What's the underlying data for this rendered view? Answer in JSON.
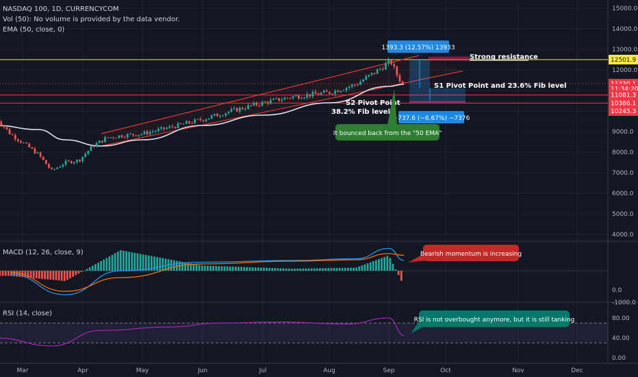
{
  "header": {
    "symbol_line": "NASDAQ 100, 1D, CURRENCYCOM",
    "vol_line": "Vol (50): No volume is provided by the data vendor.",
    "ema_line": "EMA (50, close, 0)"
  },
  "price_axis": {
    "ticks": [
      "15000.0",
      "14000.0",
      "13000.0",
      "12000.0",
      "11000.0",
      "10000.0",
      "9000.0",
      "8000.0",
      "7000.0",
      "6000.0",
      "5000.0",
      "4000.0"
    ],
    "tags": [
      {
        "label": "12501.9",
        "value": 12501.9,
        "color": "#ffeb3b",
        "text_color": "#131722"
      },
      {
        "label": "11330.1",
        "value": 11330.1,
        "color": "#f23645",
        "text_color": "#ffffff"
      },
      {
        "label": "11:34:20",
        "value": 11080,
        "color": "#f23645",
        "text_color": "#ffffff"
      },
      {
        "label": "11081.3",
        "value": 10780,
        "color": "#f23645",
        "text_color": "#ffffff"
      },
      {
        "label": "10386.1",
        "value": 10386.1,
        "color": "#f23645",
        "text_color": "#ffffff"
      },
      {
        "label": "10245.3",
        "value": 10000,
        "color": "#f23645",
        "text_color": "#ffffff"
      }
    ]
  },
  "macd_panel": {
    "title": "MACD (12, 26, close, 9)",
    "ticks": [
      "0.0",
      "-1000.0"
    ]
  },
  "rsi_panel": {
    "title": "RSI (14, close)",
    "ticks": [
      "80.00",
      "40.00",
      "0.00"
    ]
  },
  "time_axis": {
    "labels": [
      "Mar",
      "Apr",
      "May",
      "Jun",
      "Jul",
      "Aug",
      "Sep",
      "Oct",
      "Nov",
      "Dec"
    ]
  },
  "annotations": {
    "measure_up": "1393.3 (12.57%) 13933",
    "measure_down": "−737.6 (−6.67%) −7376",
    "strong_resistance": "Strong resistance",
    "s1": "S1 Pivot Point and 23.6% Fib level",
    "s2_line1": "S2 Pivot Point",
    "s2_line2": "38.2% Fib level",
    "ema_bounce": "It bounced back from the \"50 EMA\"",
    "macd_note": "Bearish momentum is increasing",
    "rsi_note": "RSI is not overbought anymore, but it is still tanking"
  },
  "colors": {
    "background": "#131722",
    "up_candle": "#26a69a",
    "down_candle": "#ef5350",
    "ema": "#e0e3eb",
    "channel": "#e53935",
    "macd_line": "#2196f3",
    "signal_line": "#ff6d00",
    "rsi_line": "#9c27b0",
    "blue_label": "#1e88e5",
    "green_label": "#2e7d32",
    "red_label": "#c62828",
    "teal_label": "#00796b"
  },
  "chart_data": {
    "type": "candlestick",
    "title": "NASDAQ 100, 1D, CURRENCYCOM",
    "ylim": [
      3700,
      15500
    ],
    "key_levels": [
      12501.9,
      11330.1,
      11081.3,
      10386.1,
      10245.3
    ],
    "close_path": [
      {
        "date": "Feb 17",
        "close": 9700
      },
      {
        "date": "Feb 24",
        "close": 8900
      },
      {
        "date": "Mar 02",
        "close": 8400
      },
      {
        "date": "Mar 09",
        "close": 7900
      },
      {
        "date": "Mar 16",
        "close": 7100
      },
      {
        "date": "Mar 23",
        "close": 7500
      },
      {
        "date": "Mar 30",
        "close": 7600
      },
      {
        "date": "Apr 06",
        "close": 8300
      },
      {
        "date": "Apr 13",
        "close": 8700
      },
      {
        "date": "Apr 20",
        "close": 8800
      },
      {
        "date": "May 01",
        "close": 8900
      },
      {
        "date": "May 15",
        "close": 9200
      },
      {
        "date": "Jun 01",
        "close": 9600
      },
      {
        "date": "Jun 15",
        "close": 10000
      },
      {
        "date": "Jul 01",
        "close": 10400
      },
      {
        "date": "Jul 15",
        "close": 10700
      },
      {
        "date": "Aug 01",
        "close": 10900
      },
      {
        "date": "Aug 15",
        "close": 11300
      },
      {
        "date": "Aug 25",
        "close": 11900
      },
      {
        "date": "Sep 02",
        "close": 12420
      },
      {
        "date": "Sep 05",
        "close": 11800
      },
      {
        "date": "Sep 09",
        "close": 11200
      }
    ],
    "ema50_path": [
      {
        "date": "Feb 17",
        "value": 9300
      },
      {
        "date": "Mar 09",
        "value": 9100
      },
      {
        "date": "Mar 23",
        "value": 8600
      },
      {
        "date": "Apr 10",
        "value": 8300
      },
      {
        "date": "May 01",
        "value": 8600
      },
      {
        "date": "Jun 01",
        "value": 9300
      },
      {
        "date": "Jul 01",
        "value": 9800
      },
      {
        "date": "Aug 01",
        "value": 10400
      },
      {
        "date": "Sep 01",
        "value": 11200
      },
      {
        "date": "Sep 09",
        "value": 11300
      }
    ],
    "rsi_path": [
      {
        "date": "Feb 17",
        "value": 40
      },
      {
        "date": "Mar 16",
        "value": 24
      },
      {
        "date": "Apr 10",
        "value": 55
      },
      {
        "date": "May 15",
        "value": 62
      },
      {
        "date": "Jun 10",
        "value": 70
      },
      {
        "date": "Jul 10",
        "value": 72
      },
      {
        "date": "Aug 10",
        "value": 68
      },
      {
        "date": "Sep 01",
        "value": 80
      },
      {
        "date": "Sep 09",
        "value": 45
      }
    ],
    "rsi_levels": [
      70,
      30
    ],
    "macd_path": [
      {
        "date": "Feb 24",
        "macd": -100,
        "signal": -50
      },
      {
        "date": "Mar 23",
        "macd": -700,
        "signal": -600
      },
      {
        "date": "Apr 20",
        "macd": 0,
        "signal": -200
      },
      {
        "date": "Jun 01",
        "macd": 250,
        "signal": 200
      },
      {
        "date": "Jul 15",
        "macd": 300,
        "signal": 280
      },
      {
        "date": "Aug 15",
        "macd": 350,
        "signal": 320
      },
      {
        "date": "Sep 01",
        "macd": 650,
        "signal": 500
      },
      {
        "date": "Sep 09",
        "macd": 300,
        "signal": 450
      }
    ]
  }
}
